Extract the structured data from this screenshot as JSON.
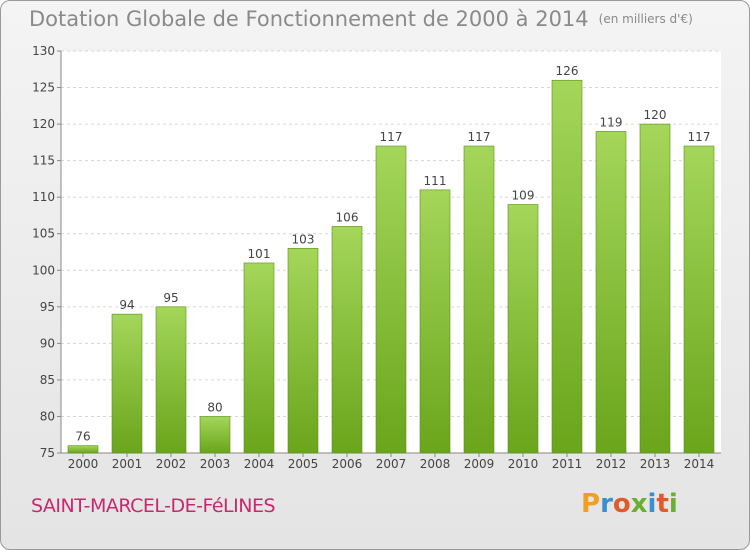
{
  "header": {
    "title": "Dotation Globale de Fonctionnement de 2000 à 2014",
    "unit": "(en milliers d'€)"
  },
  "footer": {
    "commune": "SAINT-MARCEL-DE-FéLINES",
    "brand": "Proxiti",
    "brand_colors": [
      "#f0a020",
      "#3a8fd0",
      "#e05a2a",
      "#68b030"
    ]
  },
  "chart_data": {
    "type": "bar",
    "title": "Dotation Globale de Fonctionnement de 2000 à 2014",
    "subtitle": "(en milliers d'€)",
    "xlabel": "",
    "ylabel": "",
    "categories": [
      "2000",
      "2001",
      "2002",
      "2003",
      "2004",
      "2005",
      "2006",
      "2007",
      "2008",
      "2009",
      "2010",
      "2011",
      "2012",
      "2013",
      "2014"
    ],
    "values": [
      76,
      94,
      95,
      80,
      101,
      103,
      106,
      117,
      111,
      117,
      109,
      126,
      119,
      120,
      117
    ],
    "ylim": [
      75,
      130
    ],
    "yticks": [
      75,
      80,
      85,
      90,
      95,
      100,
      105,
      110,
      115,
      120,
      125,
      130
    ],
    "grid": true,
    "bar_color_light": "#a4d65a",
    "bar_color_dark": "#6aa51c"
  }
}
